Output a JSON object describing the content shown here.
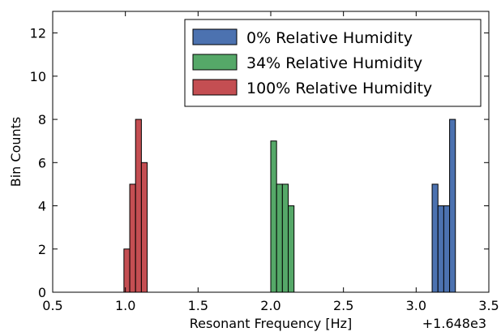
{
  "chart_data": {
    "type": "bar",
    "xlabel": "Resonant Frequency [Hz]",
    "ylabel": "Bin Counts",
    "x_offset_label": "+1.648e3",
    "xlim": [
      0.5,
      3.5
    ],
    "ylim": [
      0,
      13
    ],
    "x_ticks": [
      "0.5",
      "1.0",
      "1.5",
      "2.0",
      "2.5",
      "3.0",
      "3.5"
    ],
    "y_ticks": [
      "0",
      "2",
      "4",
      "6",
      "8",
      "10",
      "12"
    ],
    "grid": false,
    "legend_position": "top-right",
    "bin_width": 0.04,
    "series": [
      {
        "name": "0% Relative Humidity",
        "color": "#4c72b0",
        "bin_starts": [
          3.11,
          3.15,
          3.19,
          3.23
        ],
        "counts": [
          5,
          4,
          4,
          8
        ]
      },
      {
        "name": "34% Relative Humidity",
        "color": "#55a868",
        "bin_starts": [
          2.0,
          2.04,
          2.08,
          2.12
        ],
        "counts": [
          7,
          5,
          5,
          4
        ]
      },
      {
        "name": "100% Relative Humidity",
        "color": "#c44e52",
        "bin_starts": [
          0.99,
          1.03,
          1.07,
          1.11
        ],
        "counts": [
          2,
          5,
          8,
          6
        ]
      }
    ]
  }
}
